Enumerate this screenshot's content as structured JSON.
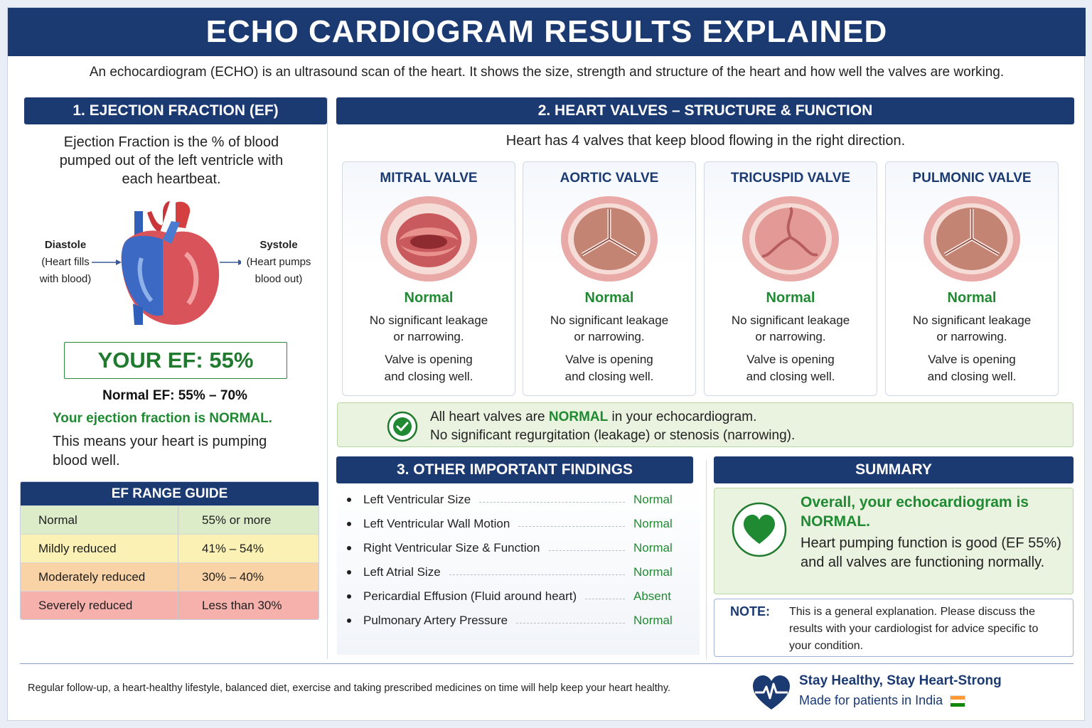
{
  "title": "ECHO CARDIOGRAM RESULTS EXPLAINED",
  "intro": "An echocardiogram (ECHO) is an ultrasound scan of the heart. It shows the size, strength and structure of the heart and how well the valves are working.",
  "ef_section": {
    "heading": "1. EJECTION FRACTION (EF)",
    "description": "Ejection Fraction is the % of blood pumped out of the left ventricle with each heartbeat.",
    "diastole_title": "Diastole",
    "diastole_line1": "(Heart fills",
    "diastole_line2": "with blood)",
    "systole_title": "Systole",
    "systole_line1": "(Heart pumps",
    "systole_line2": "blood out)",
    "your_ef": "YOUR EF: 55%",
    "normal_range": "Normal EF: 55% – 70%",
    "verdict": "Your ejection fraction is NORMAL.",
    "meaning": "This means your heart is pumping blood well."
  },
  "ef_guide": {
    "heading": "EF RANGE GUIDE",
    "rows": [
      {
        "label": "Normal",
        "range": "55% or more",
        "color": "#dcebc8"
      },
      {
        "label": "Mildly reduced",
        "range": "41% – 54%",
        "color": "#fbf1b4"
      },
      {
        "label": "Moderately reduced",
        "range": "30% – 40%",
        "color": "#f9d3a5"
      },
      {
        "label": "Severely reduced",
        "range": "Less than 30%",
        "color": "#f6b1ad"
      }
    ]
  },
  "valves_section": {
    "heading": "2. HEART VALVES – STRUCTURE & FUNCTION",
    "subtitle": "Heart has 4 valves that keep blood flowing in the right direction.",
    "valves": [
      {
        "name": "MITRAL VALVE",
        "status": "Normal",
        "text1": "No significant leakage or narrowing.",
        "text2": "Valve is opening and closing well."
      },
      {
        "name": "AORTIC VALVE",
        "status": "Normal",
        "text1": "No significant leakage or narrowing.",
        "text2": "Valve is opening and closing well."
      },
      {
        "name": "TRICUSPID VALVE",
        "status": "Normal",
        "text1": "No significant leakage or narrowing.",
        "text2": "Valve is opening and closing well."
      },
      {
        "name": "PULMONIC VALVE",
        "status": "Normal",
        "text1": "No significant leakage or narrowing.",
        "text2": "Valve is opening and closing well."
      }
    ],
    "all_normal_prefix": "All heart valves are ",
    "all_normal_word": "NORMAL",
    "all_normal_suffix": " in your echocardiogram.",
    "all_normal_line2": "No significant regurgitation (leakage) or stenosis (narrowing)."
  },
  "findings": {
    "heading": "3. OTHER IMPORTANT FINDINGS",
    "items": [
      {
        "label": "Left Ventricular Size",
        "value": "Normal"
      },
      {
        "label": "Left Ventricular Wall Motion",
        "value": "Normal"
      },
      {
        "label": "Right Ventricular Size & Function",
        "value": "Normal"
      },
      {
        "label": "Left Atrial Size",
        "value": "Normal"
      },
      {
        "label": "Pericardial Effusion (Fluid around heart)",
        "value": "Absent"
      },
      {
        "label": "Pulmonary Artery Pressure",
        "value": "Normal"
      }
    ]
  },
  "summary": {
    "heading": "SUMMARY",
    "headline": "Overall, your echocardiogram is NORMAL.",
    "body": "Heart pumping function is good (EF 55%) and all valves are functioning normally.",
    "note_label": "NOTE:",
    "note_text": "This is a general explanation. Please discuss the results with your cardiologist for advice specific to your condition."
  },
  "footer": {
    "advice": "Regular follow-up, a heart-healthy lifestyle, balanced diet, exercise and taking prescribed medicines on time will help keep your heart healthy.",
    "slogan": "Stay Healthy, Stay Heart-Strong",
    "made_for": "Made for patients in India"
  },
  "colors": {
    "navy": "#1c3a72",
    "green": "#1f8a32",
    "light_green": "#e9f3df"
  }
}
